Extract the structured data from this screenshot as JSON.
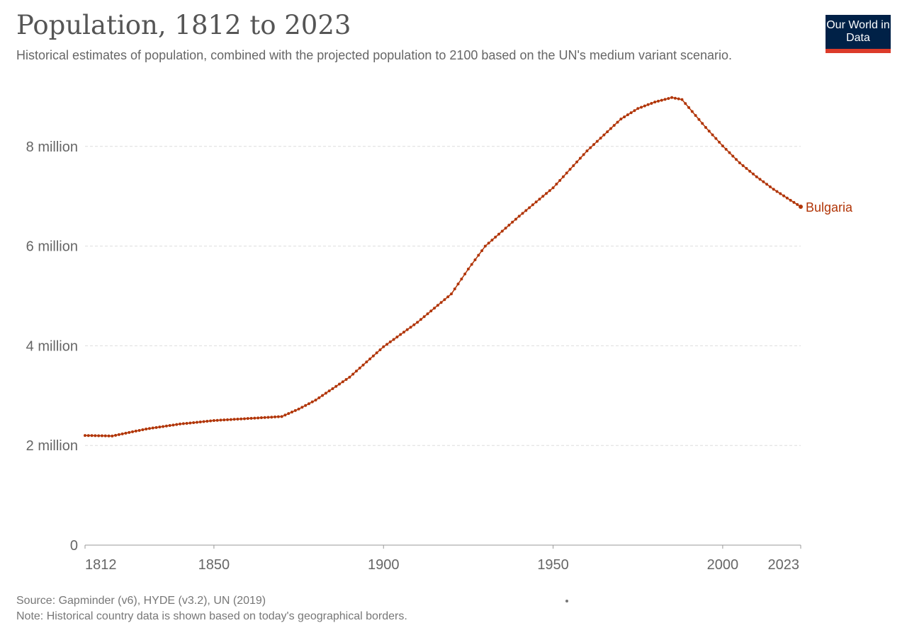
{
  "header": {
    "title": "Population, 1812 to 2023",
    "subtitle": "Historical estimates of population, combined with the projected population to 2100 based on the UN's medium variant scenario.",
    "logo_text": "Our World in Data"
  },
  "footer": {
    "source": "Source: Gapminder (v6), HYDE (v3.2), UN (2019)",
    "note": "Note: Historical country data is shown based on today's geographical borders."
  },
  "colors": {
    "series": "#b13507",
    "grid": "#dddddd",
    "axis": "#999999",
    "text": "#666666"
  },
  "chart_data": {
    "type": "line",
    "title": "Population, 1812 to 2023",
    "xlabel": "",
    "ylabel": "",
    "xlim": [
      1812,
      2023
    ],
    "ylim": [
      0,
      9000000
    ],
    "x_ticks": [
      1812,
      1850,
      1900,
      1950,
      2000,
      2023
    ],
    "x_tick_labels": [
      "1812",
      "1850",
      "1900",
      "1950",
      "2000",
      "2023"
    ],
    "y_ticks": [
      0,
      2000000,
      4000000,
      6000000,
      8000000
    ],
    "y_tick_labels": [
      "0",
      "2 million",
      "4 million",
      "6 million",
      "8 million"
    ],
    "grid": true,
    "series": [
      {
        "name": "Bulgaria",
        "color": "#b13507",
        "x": [
          1812,
          1820,
          1830,
          1840,
          1850,
          1860,
          1870,
          1875,
          1880,
          1890,
          1900,
          1910,
          1920,
          1925,
          1930,
          1940,
          1950,
          1960,
          1970,
          1975,
          1980,
          1985,
          1988,
          1990,
          1995,
          2000,
          2005,
          2010,
          2015,
          2020,
          2023
        ],
        "y": [
          2200000,
          2190000,
          2330000,
          2430000,
          2500000,
          2540000,
          2580000,
          2730000,
          2910000,
          3370000,
          3980000,
          4470000,
          5040000,
          5540000,
          6000000,
          6600000,
          7170000,
          7910000,
          8550000,
          8760000,
          8890000,
          8980000,
          8940000,
          8780000,
          8380000,
          8010000,
          7670000,
          7390000,
          7140000,
          6920000,
          6790000
        ]
      }
    ]
  }
}
